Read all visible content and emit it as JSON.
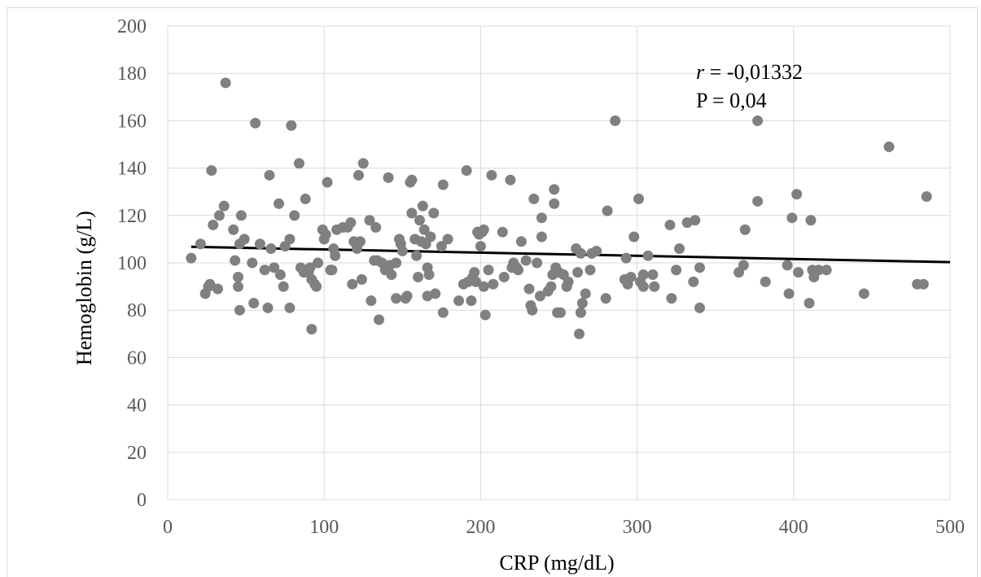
{
  "chart_data": {
    "type": "scatter",
    "xlabel": "CRP (mg/dL)",
    "ylabel": "Hemoglobin (g/L)",
    "xlim": [
      0,
      500
    ],
    "ylim": [
      0,
      200
    ],
    "x_ticks": [
      0,
      100,
      200,
      300,
      400,
      500
    ],
    "y_ticks": [
      0,
      20,
      40,
      60,
      80,
      100,
      120,
      140,
      160,
      180,
      200
    ],
    "grid": true,
    "legend": "none",
    "marker_color": "#808080",
    "trendline_color": "#000000",
    "trendline": {
      "x": [
        15,
        500
      ],
      "y": [
        106.8,
        100.3
      ]
    },
    "annotation": {
      "r_symbol": "r",
      "r_text": " = -0,01332",
      "p_text": "P = 0,04"
    },
    "points": [
      [
        15,
        102
      ],
      [
        21,
        108
      ],
      [
        24,
        87
      ],
      [
        26,
        90
      ],
      [
        27,
        91
      ],
      [
        28,
        139
      ],
      [
        29,
        116
      ],
      [
        32,
        89
      ],
      [
        33,
        120
      ],
      [
        36,
        124
      ],
      [
        37,
        176
      ],
      [
        42,
        114
      ],
      [
        43,
        101
      ],
      [
        45,
        94
      ],
      [
        45,
        90
      ],
      [
        46,
        80
      ],
      [
        46,
        108
      ],
      [
        47,
        120
      ],
      [
        49,
        110
      ],
      [
        54,
        100
      ],
      [
        55,
        83
      ],
      [
        56,
        159
      ],
      [
        59,
        108
      ],
      [
        62,
        97
      ],
      [
        64,
        81
      ],
      [
        65,
        137
      ],
      [
        66,
        106
      ],
      [
        68,
        98
      ],
      [
        71,
        125
      ],
      [
        72,
        95
      ],
      [
        74,
        90
      ],
      [
        75,
        107
      ],
      [
        78,
        110
      ],
      [
        78,
        81
      ],
      [
        79,
        158
      ],
      [
        81,
        120
      ],
      [
        84,
        142
      ],
      [
        85,
        98
      ],
      [
        87,
        96
      ],
      [
        88,
        127
      ],
      [
        90,
        96
      ],
      [
        91,
        98
      ],
      [
        92,
        93
      ],
      [
        92,
        72
      ],
      [
        94,
        91
      ],
      [
        95,
        90
      ],
      [
        96,
        100
      ],
      [
        99,
        114
      ],
      [
        100,
        110
      ],
      [
        101,
        112
      ],
      [
        102,
        134
      ],
      [
        104,
        97
      ],
      [
        105,
        97
      ],
      [
        106,
        106
      ],
      [
        107,
        103
      ],
      [
        108,
        114
      ],
      [
        112,
        115
      ],
      [
        115,
        115
      ],
      [
        117,
        117
      ],
      [
        118,
        91
      ],
      [
        119,
        109
      ],
      [
        121,
        106
      ],
      [
        122,
        137
      ],
      [
        123,
        109
      ],
      [
        124,
        93
      ],
      [
        125,
        142
      ],
      [
        129,
        118
      ],
      [
        130,
        84
      ],
      [
        132,
        101
      ],
      [
        133,
        115
      ],
      [
        134,
        101
      ],
      [
        135,
        76
      ],
      [
        137,
        100
      ],
      [
        139,
        97
      ],
      [
        141,
        136
      ],
      [
        142,
        99
      ],
      [
        143,
        95
      ],
      [
        146,
        85
      ],
      [
        146,
        100
      ],
      [
        148,
        110
      ],
      [
        149,
        108
      ],
      [
        150,
        105
      ],
      [
        152,
        85
      ],
      [
        153,
        86
      ],
      [
        155,
        134
      ],
      [
        156,
        135
      ],
      [
        156,
        121
      ],
      [
        158,
        110
      ],
      [
        159,
        103
      ],
      [
        160,
        94
      ],
      [
        161,
        118
      ],
      [
        162,
        109
      ],
      [
        163,
        124
      ],
      [
        164,
        114
      ],
      [
        165,
        108
      ],
      [
        166,
        86
      ],
      [
        166,
        98
      ],
      [
        167,
        95
      ],
      [
        168,
        111
      ],
      [
        170,
        121
      ],
      [
        171,
        87
      ],
      [
        175,
        107
      ],
      [
        176,
        133
      ],
      [
        176,
        79
      ],
      [
        179,
        110
      ],
      [
        186,
        84
      ],
      [
        189,
        91
      ],
      [
        191,
        139
      ],
      [
        192,
        92
      ],
      [
        194,
        84
      ],
      [
        195,
        94
      ],
      [
        196,
        96
      ],
      [
        197,
        92
      ],
      [
        198,
        113
      ],
      [
        199,
        112
      ],
      [
        200,
        107
      ],
      [
        201,
        113
      ],
      [
        202,
        90
      ],
      [
        202,
        114
      ],
      [
        203,
        78
      ],
      [
        205,
        97
      ],
      [
        207,
        137
      ],
      [
        208,
        91
      ],
      [
        214,
        113
      ],
      [
        215,
        94
      ],
      [
        219,
        135
      ],
      [
        220,
        98
      ],
      [
        221,
        100
      ],
      [
        223,
        98
      ],
      [
        224,
        97
      ],
      [
        226,
        109
      ],
      [
        229,
        101
      ],
      [
        231,
        89
      ],
      [
        232,
        82
      ],
      [
        233,
        80
      ],
      [
        234,
        127
      ],
      [
        236,
        100
      ],
      [
        238,
        86
      ],
      [
        239,
        119
      ],
      [
        239,
        111
      ],
      [
        243,
        88
      ],
      [
        245,
        90
      ],
      [
        246,
        95
      ],
      [
        247,
        131
      ],
      [
        247,
        125
      ],
      [
        248,
        98
      ],
      [
        249,
        79
      ],
      [
        250,
        96
      ],
      [
        251,
        79
      ],
      [
        253,
        95
      ],
      [
        255,
        90
      ],
      [
        256,
        92
      ],
      [
        261,
        106
      ],
      [
        262,
        96
      ],
      [
        263,
        70
      ],
      [
        264,
        104
      ],
      [
        264,
        79
      ],
      [
        265,
        83
      ],
      [
        267,
        87
      ],
      [
        270,
        97
      ],
      [
        271,
        104
      ],
      [
        274,
        105
      ],
      [
        280,
        85
      ],
      [
        281,
        122
      ],
      [
        286,
        160
      ],
      [
        292,
        93
      ],
      [
        293,
        102
      ],
      [
        294,
        91
      ],
      [
        296,
        94
      ],
      [
        298,
        111
      ],
      [
        301,
        127
      ],
      [
        302,
        92
      ],
      [
        304,
        95
      ],
      [
        304,
        90
      ],
      [
        307,
        103
      ],
      [
        310,
        95
      ],
      [
        311,
        90
      ],
      [
        321,
        116
      ],
      [
        322,
        85
      ],
      [
        325,
        97
      ],
      [
        327,
        106
      ],
      [
        332,
        117
      ],
      [
        336,
        92
      ],
      [
        337,
        118
      ],
      [
        340,
        98
      ],
      [
        340,
        81
      ],
      [
        365,
        96
      ],
      [
        368,
        99
      ],
      [
        369,
        114
      ],
      [
        377,
        160
      ],
      [
        377,
        126
      ],
      [
        382,
        92
      ],
      [
        396,
        99
      ],
      [
        397,
        87
      ],
      [
        399,
        119
      ],
      [
        402,
        129
      ],
      [
        403,
        96
      ],
      [
        410,
        83
      ],
      [
        411,
        118
      ],
      [
        412,
        97
      ],
      [
        413,
        94
      ],
      [
        416,
        97
      ],
      [
        421,
        97
      ],
      [
        445,
        87
      ],
      [
        461,
        149
      ],
      [
        479,
        91
      ],
      [
        483,
        91
      ],
      [
        485,
        128
      ]
    ]
  }
}
